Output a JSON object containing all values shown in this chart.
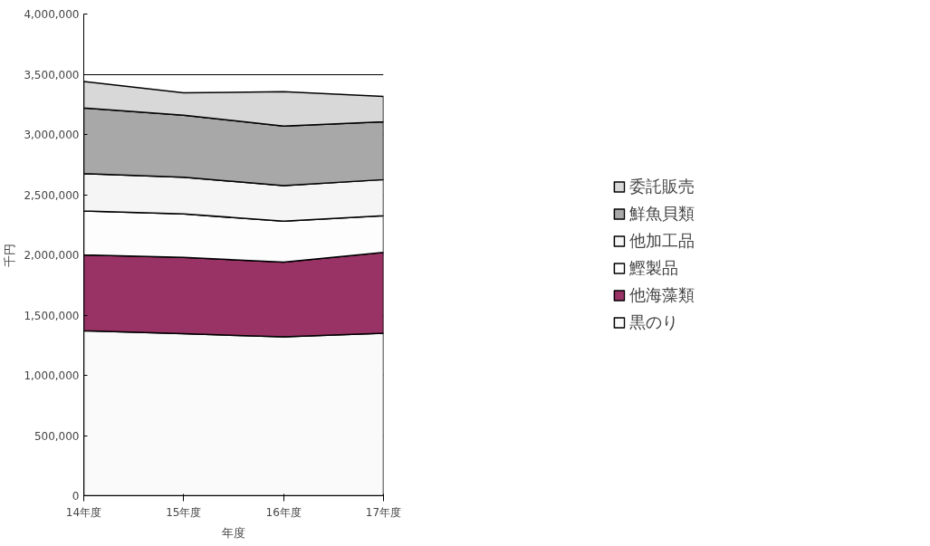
{
  "chart_data": {
    "type": "area",
    "stacked": true,
    "xlabel": "年度",
    "ylabel": "千円",
    "categories": [
      "14年度",
      "15年度",
      "16年度",
      "17年度"
    ],
    "series": [
      {
        "name": "黒のり",
        "color": "#fafafa",
        "values": [
          1370000,
          1345000,
          1320000,
          1350000
        ]
      },
      {
        "name": "他海藻類",
        "color": "#993366",
        "values": [
          630000,
          635000,
          620000,
          670000
        ]
      },
      {
        "name": "鰹製品",
        "color": "#fdfdfd",
        "values": [
          365000,
          360000,
          340000,
          305000
        ]
      },
      {
        "name": "他加工品",
        "color": "#f5f5f5",
        "values": [
          310000,
          305000,
          295000,
          300000
        ]
      },
      {
        "name": "鮮魚貝類",
        "color": "#a8a8a8",
        "values": [
          545000,
          515000,
          495000,
          480000
        ]
      },
      {
        "name": "委託販売",
        "color": "#d8d8d8",
        "values": [
          220000,
          185000,
          285000,
          210000
        ]
      }
    ],
    "ylim": [
      0,
      4000000
    ],
    "yticks": [
      0,
      {
        "value": 500000,
        "label": "500,000"
      },
      {
        "value": 1000000,
        "label": "1,000,000"
      },
      {
        "value": 1500000,
        "label": "1,500,000"
      },
      {
        "value": 2000000,
        "label": "2,000,000"
      },
      {
        "value": 2500000,
        "label": "2,500,000"
      },
      {
        "value": 3000000,
        "label": "3,000,000"
      },
      {
        "value": 3500000,
        "label": "3,500,000"
      },
      {
        "value": 4000000,
        "label": "4,000,000"
      }
    ],
    "grid": "y",
    "legend": "right"
  }
}
